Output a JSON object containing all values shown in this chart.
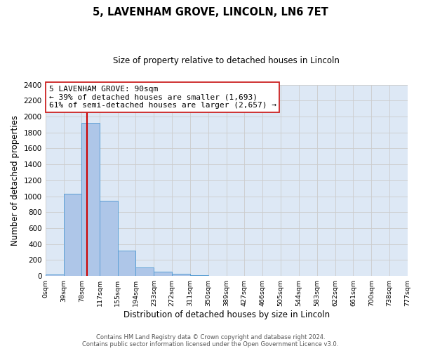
{
  "title": "5, LAVENHAM GROVE, LINCOLN, LN6 7ET",
  "subtitle": "Size of property relative to detached houses in Lincoln",
  "xlabel": "Distribution of detached houses by size in Lincoln",
  "ylabel": "Number of detached properties",
  "bin_edges": [
    0,
    39,
    78,
    117,
    155,
    194,
    233,
    272,
    311,
    350,
    389,
    427,
    466,
    505,
    544,
    583,
    622,
    661,
    700,
    738,
    777
  ],
  "bin_labels": [
    "0sqm",
    "39sqm",
    "78sqm",
    "117sqm",
    "155sqm",
    "194sqm",
    "233sqm",
    "272sqm",
    "311sqm",
    "350sqm",
    "389sqm",
    "427sqm",
    "466sqm",
    "505sqm",
    "544sqm",
    "583sqm",
    "622sqm",
    "661sqm",
    "700sqm",
    "738sqm",
    "777sqm"
  ],
  "bar_heights": [
    20,
    1030,
    1920,
    940,
    320,
    110,
    55,
    30,
    8,
    0,
    0,
    0,
    0,
    0,
    0,
    0,
    0,
    0,
    0,
    0
  ],
  "bar_color": "#aec6e8",
  "bar_edge_color": "#5a9fd4",
  "property_line_x": 90,
  "property_line_color": "#cc0000",
  "ylim": [
    0,
    2400
  ],
  "yticks": [
    0,
    200,
    400,
    600,
    800,
    1000,
    1200,
    1400,
    1600,
    1800,
    2000,
    2200,
    2400
  ],
  "grid_color": "#cccccc",
  "bg_color": "#dde8f5",
  "annotation_line1": "5 LAVENHAM GROVE: 90sqm",
  "annotation_line2": "← 39% of detached houses are smaller (1,693)",
  "annotation_line3": "61% of semi-detached houses are larger (2,657) →",
  "footer1": "Contains HM Land Registry data © Crown copyright and database right 2024.",
  "footer2": "Contains public sector information licensed under the Open Government Licence v3.0."
}
